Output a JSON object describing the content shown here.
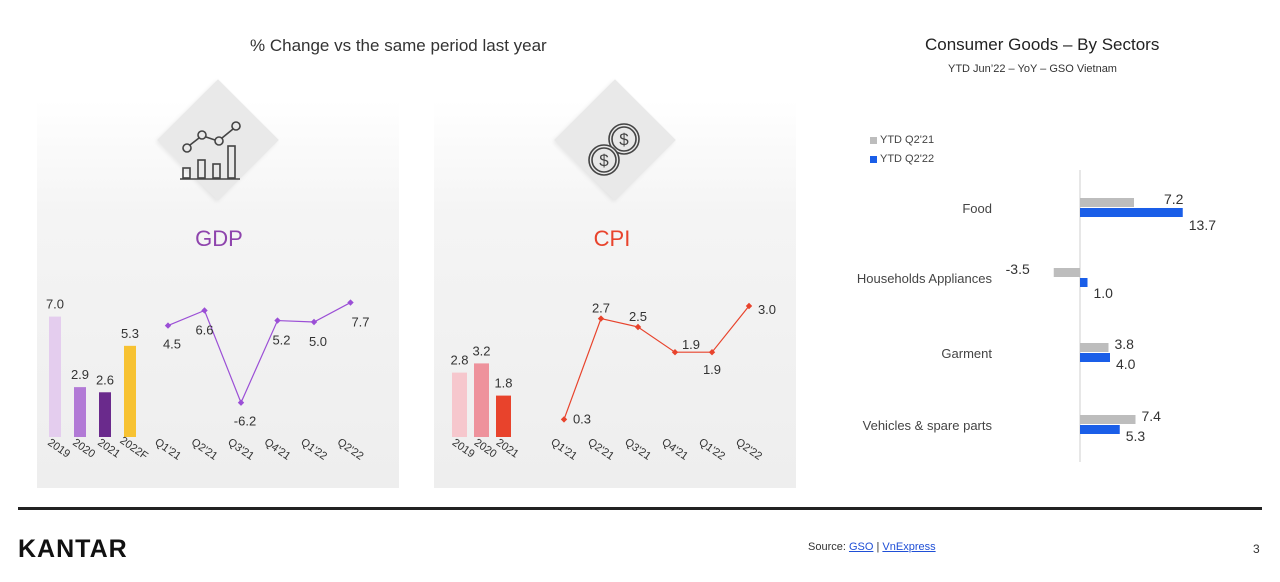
{
  "left_title": "% Change vs the same period last year",
  "right_title": "Consumer Goods – By Sectors",
  "right_subtitle": "YTD Jun’22 – YoY – GSO Vietnam",
  "gdp": {
    "label": "GDP",
    "label_color": "#8e44ad",
    "icon": "line-bar-chart-icon"
  },
  "cpi": {
    "label": "CPI",
    "label_color": "#e8432c",
    "icon": "coins-dollar-icon"
  },
  "footer": {
    "logo": "KANTAR",
    "source_prefix": "Source: ",
    "source_link1": "GSO",
    "source_sep": " | ",
    "source_link2": "VnExpress",
    "page_number": "3"
  },
  "chart_data": [
    {
      "id": "gdp-annual",
      "type": "bar",
      "categories": [
        "2019",
        "2020",
        "2021",
        "2022F"
      ],
      "values": [
        7.0,
        2.9,
        2.6,
        5.3
      ],
      "labels": [
        "7.0",
        "2.9",
        "2.6",
        "5.3"
      ],
      "colors": [
        "#e4cdee",
        "#b27ad6",
        "#6a2a8c",
        "#f7c232"
      ]
    },
    {
      "id": "gdp-quarterly",
      "type": "line",
      "categories": [
        "Q1'21",
        "Q2'21",
        "Q3'21",
        "Q4'21",
        "Q1'22",
        "Q2'22"
      ],
      "values": [
        4.5,
        6.6,
        -6.2,
        5.2,
        5.0,
        7.7
      ],
      "labels": [
        "4.5",
        "6.6",
        "-6.2",
        "5.2",
        "5.0",
        "7.7"
      ],
      "color": "#9b4fd6"
    },
    {
      "id": "cpi-annual",
      "type": "bar",
      "categories": [
        "2019",
        "2020",
        "2021"
      ],
      "values": [
        2.8,
        3.2,
        1.8
      ],
      "labels": [
        "2.8",
        "3.2",
        "1.8"
      ],
      "colors": [
        "#f6c7cd",
        "#ee929c",
        "#e8432c"
      ]
    },
    {
      "id": "cpi-quarterly",
      "type": "line",
      "categories": [
        "Q1'21",
        "Q2'21",
        "Q3'21",
        "Q4'21",
        "Q1'22",
        "Q2'22"
      ],
      "values": [
        0.3,
        2.7,
        2.5,
        1.9,
        1.9,
        3.0
      ],
      "labels": [
        "0.3",
        "2.7",
        "2.5",
        "1.9",
        "1.9",
        "3.0"
      ],
      "color": "#e8432c"
    },
    {
      "id": "consumer-goods",
      "type": "bar",
      "orientation": "horizontal",
      "title": "Consumer Goods – By Sectors",
      "subtitle": "YTD Jun’22 – YoY – GSO Vietnam",
      "categories": [
        "Food",
        "Households Appliances",
        "Garment",
        "Vehicles & spare parts"
      ],
      "series": [
        {
          "name": "YTD Q2'21",
          "values": [
            7.2,
            -3.5,
            3.8,
            7.4
          ],
          "labels": [
            "7.2",
            "-3.5",
            "3.8",
            "7.4"
          ],
          "color": "#bdbdbd"
        },
        {
          "name": "YTD Q2'22",
          "values": [
            13.7,
            1.0,
            4.0,
            5.3
          ],
          "labels": [
            "13.7",
            "1.0",
            "4.0",
            "5.3"
          ],
          "color": "#1a5ee8"
        }
      ]
    }
  ]
}
